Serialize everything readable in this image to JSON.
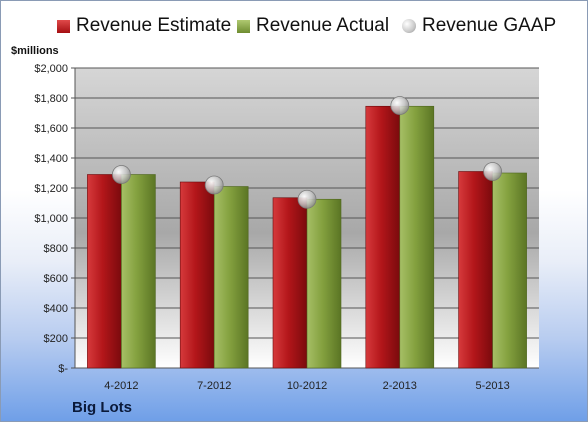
{
  "chart_data": {
    "type": "bar",
    "title": "",
    "unit_label": "$millions",
    "company": "Big Lots",
    "categories": [
      "4-2012",
      "7-2012",
      "10-2012",
      "2-2013",
      "5-2013"
    ],
    "series": [
      {
        "name": "Revenue Estimate",
        "kind": "bar",
        "color": "#c0181c",
        "values": [
          1290,
          1240,
          1135,
          1745,
          1310
        ]
      },
      {
        "name": "Revenue Actual",
        "kind": "bar",
        "color": "#8aa84a",
        "values": [
          1290,
          1210,
          1125,
          1745,
          1300
        ]
      },
      {
        "name": "Revenue GAAP",
        "kind": "marker",
        "color": "#b8b8b8",
        "values": [
          1290,
          1220,
          1125,
          1750,
          1310
        ]
      }
    ],
    "ylim": [
      0,
      2000
    ],
    "yticks": [
      0,
      200,
      400,
      600,
      800,
      1000,
      1200,
      1400,
      1600,
      1800,
      2000
    ],
    "ytick_labels": [
      "$-",
      "$200",
      "$400",
      "$600",
      "$800",
      "$1,000",
      "$1,200",
      "$1,400",
      "$1,600",
      "$1,800",
      "$2,000"
    ],
    "grid": true,
    "legend": "top"
  }
}
